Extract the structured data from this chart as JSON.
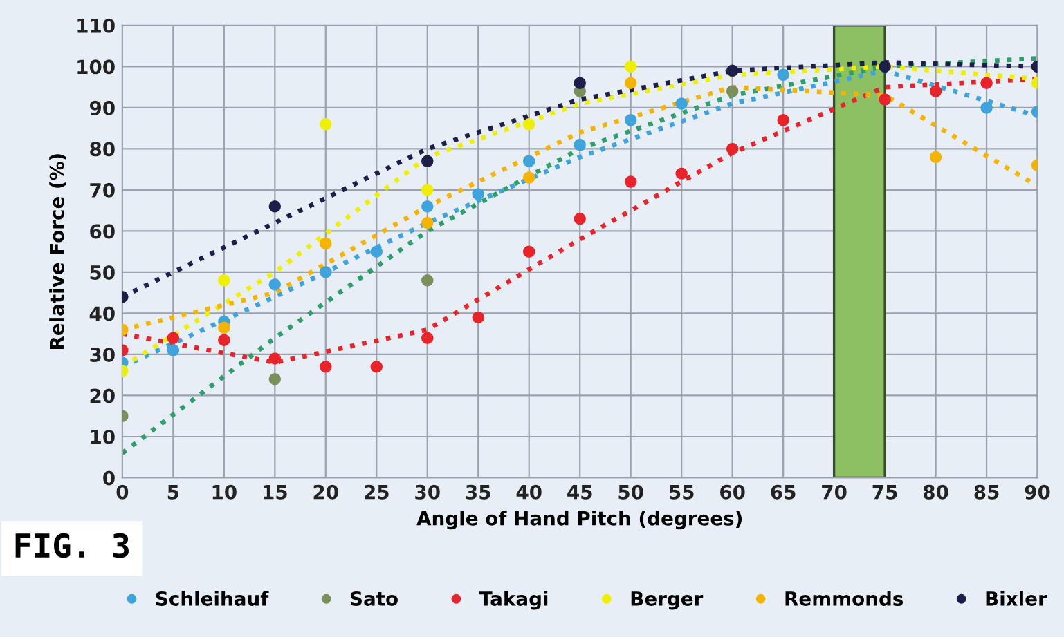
{
  "chart_data": {
    "type": "scatter",
    "xlabel": "Angle of Hand Pitch (degrees)",
    "ylabel": "Relative Force (%)",
    "xlim": [
      0,
      90
    ],
    "xticks": [
      0,
      5,
      10,
      15,
      20,
      25,
      30,
      35,
      40,
      45,
      50,
      55,
      60,
      65,
      70,
      75,
      80,
      85,
      90
    ],
    "ylim": [
      0,
      110
    ],
    "yticks": [
      0,
      10,
      20,
      30,
      40,
      50,
      60,
      70,
      80,
      90,
      100,
      110
    ],
    "grid": true,
    "legend": "bottom",
    "marker": "circle",
    "annotations": [
      "FIG. 3"
    ],
    "bands": [
      {
        "axis": "x",
        "from": 70,
        "to": 75,
        "color": "#8dc063"
      }
    ],
    "series": [
      {
        "name": "Schleihauf",
        "color": "#3fa3dc",
        "x": [
          0,
          5,
          10,
          15,
          20,
          25,
          30,
          35,
          40,
          45,
          50,
          55,
          65,
          85,
          90
        ],
        "values": [
          28,
          31,
          38,
          47,
          50,
          55,
          66,
          69,
          77,
          81,
          87,
          91,
          98,
          90,
          89
        ]
      },
      {
        "name": "Sato",
        "color": "#7a8f5a",
        "x": [
          0,
          15,
          30,
          45,
          60
        ],
        "values": [
          15,
          24,
          48,
          94,
          94
        ]
      },
      {
        "name": "Takagi",
        "color": "#e8232a",
        "x": [
          0,
          5,
          10,
          15,
          20,
          25,
          30,
          35,
          40,
          45,
          50,
          55,
          60,
          65,
          75,
          80,
          85
        ],
        "values": [
          31,
          34,
          33.5,
          29,
          27,
          27,
          34,
          39,
          55,
          63,
          72,
          74,
          80,
          87,
          92,
          94,
          96
        ]
      },
      {
        "name": "Berger",
        "color": "#eef000",
        "x": [
          0,
          10,
          20,
          30,
          40,
          50,
          90
        ],
        "values": [
          26,
          48,
          86,
          70,
          86,
          100,
          96
        ]
      },
      {
        "name": "Remmonds",
        "color": "#f5b400",
        "x": [
          0,
          10,
          20,
          30,
          40,
          50,
          80,
          90
        ],
        "values": [
          36,
          36.5,
          57,
          62,
          73,
          96,
          78,
          76
        ]
      },
      {
        "name": "Bixler",
        "color": "#1c1f4a",
        "x": [
          0,
          15,
          30,
          45,
          60,
          75,
          90
        ],
        "values": [
          44,
          66,
          77,
          96,
          99,
          100,
          100
        ]
      },
      {
        "type": "line",
        "marker": "none",
        "line_style": "dotted",
        "color": "#3fa3dc",
        "x": [
          0,
          15,
          30,
          45,
          60,
          75,
          90
        ],
        "values": [
          27,
          44,
          62,
          78,
          91,
          99,
          88
        ]
      },
      {
        "type": "line",
        "marker": "none",
        "line_style": "dotted",
        "color": "#2e9e6a",
        "x": [
          0,
          15,
          30,
          45,
          60,
          75,
          90
        ],
        "values": [
          6,
          34,
          60,
          80,
          93,
          100,
          102
        ]
      },
      {
        "type": "line",
        "marker": "none",
        "line_style": "dotted",
        "color": "#e8232a",
        "x": [
          0,
          15,
          30,
          45,
          60,
          75,
          90
        ],
        "values": [
          35,
          28,
          36,
          58,
          79,
          95,
          97
        ]
      },
      {
        "type": "line",
        "marker": "none",
        "line_style": "dotted",
        "color": "#eef000",
        "x": [
          0,
          15,
          30,
          45,
          60,
          75,
          90
        ],
        "values": [
          27,
          50,
          78,
          91,
          98,
          100,
          97
        ]
      },
      {
        "type": "line",
        "marker": "none",
        "line_style": "dotted",
        "color": "#f5b400",
        "x": [
          0,
          15,
          30,
          45,
          60,
          75,
          90
        ],
        "values": [
          36,
          45,
          66,
          84,
          95,
          93,
          71
        ]
      },
      {
        "type": "line",
        "marker": "none",
        "line_style": "dotted",
        "color": "#1c1f4a",
        "x": [
          0,
          15,
          30,
          45,
          60,
          75,
          90
        ],
        "values": [
          44,
          62,
          80,
          92,
          99,
          101,
          100
        ]
      }
    ]
  }
}
